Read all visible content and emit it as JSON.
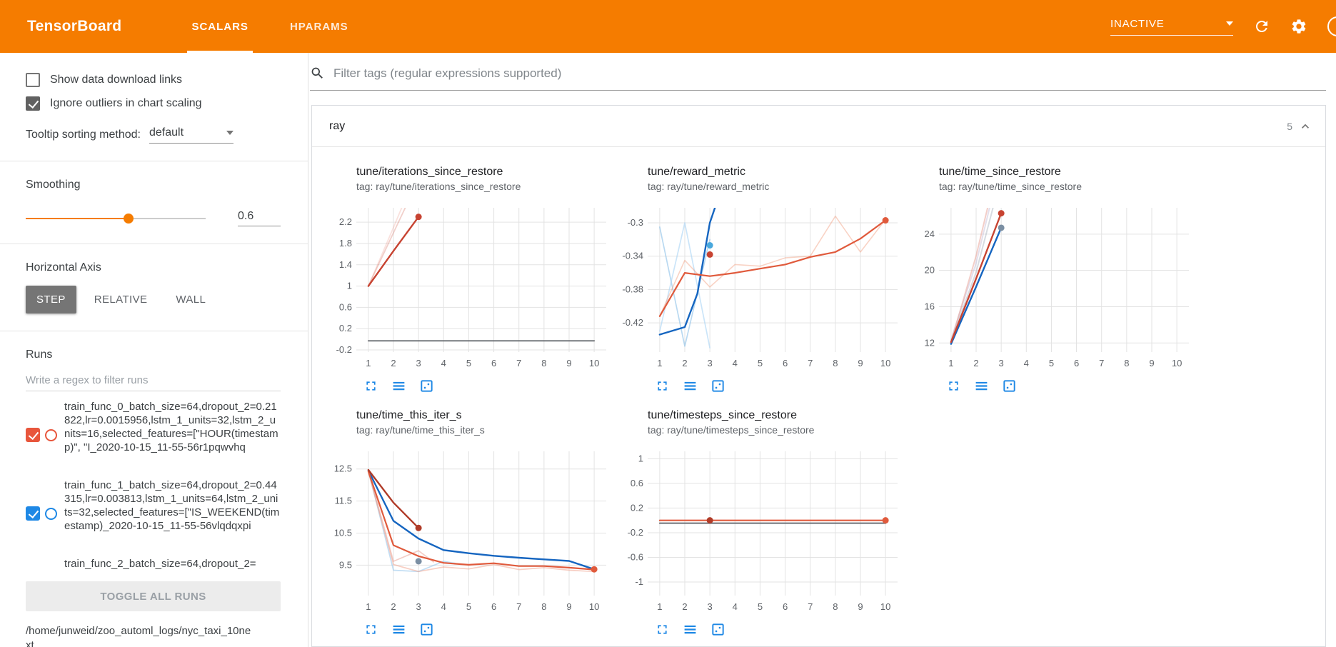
{
  "theme": {
    "accent": "#f57c00",
    "action_icon_blue": "#1e88e5"
  },
  "header": {
    "brand": "TensorBoard",
    "tabs": [
      {
        "label": "SCALARS",
        "active": true
      },
      {
        "label": "HPARAMS",
        "active": false
      }
    ],
    "status": "INACTIVE"
  },
  "sidebar": {
    "checkboxes": [
      {
        "label": "Show data download links",
        "checked": false
      },
      {
        "label": "Ignore outliers in chart scaling",
        "checked": true
      }
    ],
    "tooltip_sort": {
      "label": "Tooltip sorting method:",
      "value": "default"
    },
    "smoothing": {
      "label": "Smoothing",
      "value": "0.6"
    },
    "horizontal_axis": {
      "label": "Horizontal Axis",
      "options": [
        "STEP",
        "RELATIVE",
        "WALL"
      ],
      "selected": "STEP"
    },
    "runs": {
      "label": "Runs",
      "filter_placeholder": "Write a regex to filter runs",
      "items": [
        {
          "text": "train_func_0_batch_size=64,dropout_2=0.21822,lr=0.0015956,lstm_1_units=32,lstm_2_units=16,selected_features=[\"HOUR(timestamp)\", \"I_2020-10-15_11-55-56r1pqwvhq",
          "checked": true,
          "color": "#e8563c"
        },
        {
          "text": "train_func_1_batch_size=64,dropout_2=0.44315,lr=0.003813,lstm_1_units=64,lstm_2_units=32,selected_features=[\"IS_WEEKEND(timestamp)_2020-10-15_11-55-56vlqdqxpi",
          "checked": true,
          "color": "#1e88e5"
        },
        {
          "text": "train_func_2_batch_size=64,dropout_2="
        }
      ],
      "toggle_all": "TOGGLE ALL RUNS",
      "log_path": "/home/junweid/zoo_automl_logs/nyc_taxi_10next"
    }
  },
  "main": {
    "filter_placeholder": "Filter tags (regular expressions supported)",
    "group": {
      "name": "ray",
      "count": "5"
    }
  },
  "chart_data": [
    {
      "type": "line",
      "title": "tune/iterations_since_restore",
      "subtitle": "tag: ray/tune/iterations_since_restore",
      "xlim": [
        0.52,
        10.48
      ],
      "ylim": [
        -0.24,
        2.47
      ],
      "x_ticks": [
        1,
        2,
        3,
        4,
        5,
        6,
        7,
        8,
        9,
        10
      ],
      "y_ticks": [
        -0.2,
        0.2,
        0.6,
        1,
        1.4,
        1.8,
        2.2
      ],
      "series": [
        {
          "name": "run0-raw",
          "color": "#c74331",
          "opacity": 0.25,
          "width": 1.8,
          "points": [
            [
              1,
              1
            ],
            [
              2,
              2
            ],
            [
              3,
              3
            ]
          ]
        },
        {
          "name": "run1-raw",
          "color": "#e8705a",
          "opacity": 0.2,
          "width": 1.8,
          "points": [
            [
              1,
              1
            ],
            [
              2,
              2.1
            ],
            [
              2.8,
              3
            ]
          ]
        },
        {
          "name": "flat-run",
          "color": "#5f6368",
          "opacity": 0.85,
          "width": 2,
          "points": [
            [
              1,
              -0.03
            ],
            [
              10,
              -0.03
            ]
          ]
        },
        {
          "name": "run0-smoothed",
          "color": "#c74331",
          "opacity": 1,
          "width": 2.4,
          "points": [
            [
              1,
              1
            ],
            [
              2,
              1.66
            ],
            [
              3,
              2.3
            ]
          ]
        }
      ],
      "dots": [
        {
          "x": 3,
          "y": 2.3,
          "color": "#c74331"
        }
      ]
    },
    {
      "type": "line",
      "title": "tune/reward_metric",
      "subtitle": "tag: ray/tune/reward_metric",
      "xlim": [
        0.52,
        10.48
      ],
      "ylim": [
        -0.455,
        -0.282
      ],
      "x_ticks": [
        1,
        2,
        3,
        4,
        5,
        6,
        7,
        8,
        9,
        10
      ],
      "y_ticks": [
        -0.42,
        -0.38,
        -0.34,
        -0.3
      ],
      "series": [
        {
          "name": "blue-raw-a",
          "color": "#7fb9e6",
          "opacity": 0.55,
          "width": 1.7,
          "points": [
            [
              1,
              -0.305
            ],
            [
              2,
              -0.448
            ],
            [
              3,
              -0.32
            ]
          ]
        },
        {
          "name": "blue-raw-b",
          "color": "#a9d4f5",
          "opacity": 0.6,
          "width": 1.7,
          "points": [
            [
              1,
              -0.43
            ],
            [
              2,
              -0.3
            ],
            [
              3,
              -0.45
            ]
          ]
        },
        {
          "name": "orange-raw",
          "color": "#f0906f",
          "opacity": 0.4,
          "width": 1.6,
          "points": [
            [
              1,
              -0.412
            ],
            [
              2,
              -0.345
            ],
            [
              3,
              -0.377
            ],
            [
              4,
              -0.35
            ],
            [
              5,
              -0.352
            ],
            [
              6,
              -0.342
            ],
            [
              7,
              -0.34
            ],
            [
              8,
              -0.292
            ],
            [
              9,
              -0.335
            ],
            [
              10,
              -0.296
            ]
          ]
        },
        {
          "name": "blue-smoothed",
          "color": "#1565c0",
          "opacity": 1,
          "width": 2.4,
          "points": [
            [
              1,
              -0.434
            ],
            [
              2,
              -0.425
            ],
            [
              2.5,
              -0.385
            ],
            [
              3,
              -0.3
            ],
            [
              3.2,
              -0.282
            ]
          ]
        },
        {
          "name": "orange-smoothed",
          "color": "#e05a3c",
          "opacity": 1,
          "width": 2.2,
          "points": [
            [
              1,
              -0.412
            ],
            [
              2,
              -0.36
            ],
            [
              3,
              -0.364
            ],
            [
              4,
              -0.36
            ],
            [
              5,
              -0.355
            ],
            [
              6,
              -0.35
            ],
            [
              7,
              -0.341
            ],
            [
              8,
              -0.335
            ],
            [
              9,
              -0.319
            ],
            [
              10,
              -0.297
            ]
          ]
        }
      ],
      "dots": [
        {
          "x": 3,
          "y": -0.327,
          "color": "#49a8dd"
        },
        {
          "x": 3,
          "y": -0.338,
          "color": "#c74331"
        },
        {
          "x": 10,
          "y": -0.297,
          "color": "#e05a3c"
        }
      ]
    },
    {
      "type": "line",
      "title": "tune/time_since_restore",
      "subtitle": "tag: ray/tune/time_since_restore",
      "xlim": [
        0.52,
        10.48
      ],
      "ylim": [
        11.0,
        26.9
      ],
      "x_ticks": [
        1,
        2,
        3,
        4,
        5,
        6,
        7,
        8,
        9,
        10
      ],
      "y_ticks": [
        12,
        16,
        20,
        24
      ],
      "series": [
        {
          "name": "faint-gray",
          "color": "#9aa4b5",
          "opacity": 0.4,
          "width": 2,
          "points": [
            [
              1,
              12.2
            ],
            [
              2,
              19.8
            ],
            [
              2.72,
              27.4
            ]
          ]
        },
        {
          "name": "faint-lavender",
          "color": "#b9aed0",
          "opacity": 0.4,
          "width": 2,
          "points": [
            [
              1,
              12.4
            ],
            [
              2,
              20.8
            ],
            [
              2.58,
              27.4
            ]
          ]
        },
        {
          "name": "faint-red",
          "color": "#e59285",
          "opacity": 0.45,
          "width": 2,
          "points": [
            [
              1,
              12.1
            ],
            [
              2,
              21.6
            ],
            [
              2.5,
              27.4
            ]
          ]
        },
        {
          "name": "blue-smoothed",
          "color": "#1565c0",
          "opacity": 1,
          "width": 2.4,
          "points": [
            [
              1,
              11.9
            ],
            [
              2,
              18.2
            ],
            [
              3,
              24.7
            ]
          ]
        },
        {
          "name": "red-smoothed",
          "color": "#c74331",
          "opacity": 1,
          "width": 2.4,
          "points": [
            [
              1,
              12.1
            ],
            [
              2,
              19.1
            ],
            [
              3,
              26.3
            ]
          ]
        }
      ],
      "dots": [
        {
          "x": 3,
          "y": 26.3,
          "color": "#c74331"
        },
        {
          "x": 3,
          "y": 24.7,
          "color": "#7b8fa3"
        }
      ]
    },
    {
      "type": "line",
      "title": "tune/time_this_iter_s",
      "subtitle": "tag: ray/tune/time_this_iter_s",
      "xlim": [
        0.52,
        10.48
      ],
      "ylim": [
        8.55,
        13.05
      ],
      "x_ticks": [
        1,
        2,
        3,
        4,
        5,
        6,
        7,
        8,
        9,
        10
      ],
      "y_ticks": [
        9.5,
        10.5,
        11.5,
        12.5
      ],
      "series": [
        {
          "name": "faint-blue",
          "color": "#86bdea",
          "opacity": 0.5,
          "width": 1.7,
          "points": [
            [
              1,
              12.45
            ],
            [
              2,
              9.34
            ],
            [
              3,
              9.3
            ],
            [
              4,
              9.62
            ],
            [
              4.5,
              9.55
            ]
          ]
        },
        {
          "name": "faint-orange",
          "color": "#f0a08a",
          "opacity": 0.5,
          "width": 1.7,
          "points": [
            [
              1,
              12.4
            ],
            [
              2,
              9.52
            ],
            [
              3,
              9.3
            ],
            [
              4,
              9.44
            ],
            [
              5,
              9.38
            ],
            [
              6,
              9.52
            ],
            [
              7,
              9.36
            ],
            [
              8,
              9.42
            ],
            [
              9,
              9.34
            ],
            [
              10,
              9.3
            ]
          ]
        },
        {
          "name": "faint-red",
          "color": "#e59285",
          "opacity": 0.45,
          "width": 1.7,
          "points": [
            [
              1,
              12.45
            ],
            [
              2,
              9.62
            ],
            [
              3,
              9.95
            ],
            [
              3.6,
              9.6
            ]
          ]
        },
        {
          "name": "blue-smoothed",
          "color": "#1565c0",
          "opacity": 1,
          "width": 2.4,
          "points": [
            [
              1,
              12.45
            ],
            [
              2,
              10.88
            ],
            [
              3,
              10.33
            ],
            [
              4,
              9.97
            ],
            [
              5,
              9.87
            ],
            [
              6,
              9.79
            ],
            [
              7,
              9.73
            ],
            [
              8,
              9.68
            ],
            [
              9,
              9.63
            ],
            [
              10,
              9.37
            ]
          ]
        },
        {
          "name": "orange-smoothed",
          "color": "#e05a3c",
          "opacity": 1,
          "width": 2.2,
          "points": [
            [
              1,
              12.42
            ],
            [
              2,
              10.12
            ],
            [
              3,
              9.78
            ],
            [
              4,
              9.57
            ],
            [
              5,
              9.51
            ],
            [
              6,
              9.56
            ],
            [
              7,
              9.47
            ],
            [
              8,
              9.47
            ],
            [
              9,
              9.42
            ],
            [
              10,
              9.36
            ]
          ]
        },
        {
          "name": "darkred-smoothed",
          "color": "#b03b28",
          "opacity": 1,
          "width": 2.4,
          "points": [
            [
              1,
              12.47
            ],
            [
              2,
              11.45
            ],
            [
              3,
              10.66
            ]
          ]
        }
      ],
      "dots": [
        {
          "x": 3,
          "y": 10.66,
          "color": "#b03b28"
        },
        {
          "x": 3,
          "y": 9.62,
          "color": "#7b8fa3"
        },
        {
          "x": 10,
          "y": 9.37,
          "color": "#e05a3c"
        }
      ]
    },
    {
      "type": "line",
      "title": "tune/timesteps_since_restore",
      "subtitle": "tag: ray/tune/timesteps_since_restore",
      "xlim": [
        0.52,
        10.48
      ],
      "ylim": [
        -1.22,
        1.12
      ],
      "x_ticks": [
        1,
        2,
        3,
        4,
        5,
        6,
        7,
        8,
        9,
        10
      ],
      "y_ticks": [
        -1,
        -0.6,
        -0.2,
        0.2,
        0.6,
        1
      ],
      "series": [
        {
          "name": "gray-flat",
          "color": "#5f6368",
          "opacity": 0.9,
          "width": 2,
          "points": [
            [
              1,
              -0.045
            ],
            [
              10,
              -0.045
            ]
          ]
        },
        {
          "name": "orange-flat",
          "color": "#e05a3c",
          "opacity": 1,
          "width": 2.2,
          "points": [
            [
              1,
              0
            ],
            [
              10,
              0
            ]
          ]
        }
      ],
      "dots": [
        {
          "x": 3,
          "y": 0,
          "color": "#b03b28"
        },
        {
          "x": 10,
          "y": 0,
          "color": "#e05a3c"
        }
      ]
    }
  ]
}
